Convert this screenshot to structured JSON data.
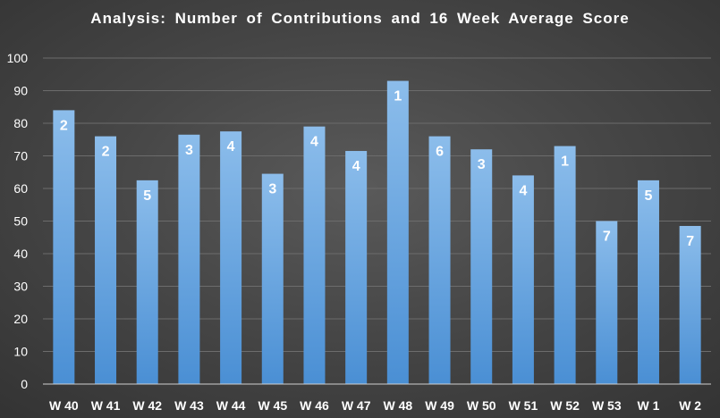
{
  "chart_data": {
    "type": "bar",
    "title": "Analysis:  Number of Contributions and 16 Week Average Score",
    "xlabel": "",
    "ylabel": "",
    "categories": [
      "W 40",
      "W 41",
      "W 42",
      "W 43",
      "W 44",
      "W 45",
      "W 46",
      "W 47",
      "W 48",
      "W 49",
      "W 50",
      "W 51",
      "W 52",
      "W 53",
      "W 1",
      "W 2"
    ],
    "values": [
      84,
      76,
      62.5,
      76.5,
      77.5,
      64.5,
      79,
      71.5,
      93,
      76,
      72,
      64,
      73,
      50,
      62.5,
      48.5
    ],
    "data_labels": [
      "2",
      "2",
      "5",
      "3",
      "4",
      "3",
      "4",
      "4",
      "1",
      "6",
      "3",
      "4",
      "1",
      "7",
      "5",
      "7"
    ],
    "ylim": [
      0,
      100
    ],
    "yticks": [
      "0",
      "10",
      "20",
      "30",
      "40",
      "50",
      "60",
      "70",
      "80",
      "90",
      "100"
    ],
    "grid": true,
    "legend": "none",
    "colors": {
      "bar_top": "#8cbdeb",
      "bar_bottom": "#4a8fd4",
      "grid": "#6c6c6c",
      "axis": "#d0d0d0",
      "text": "#ffffff"
    }
  }
}
